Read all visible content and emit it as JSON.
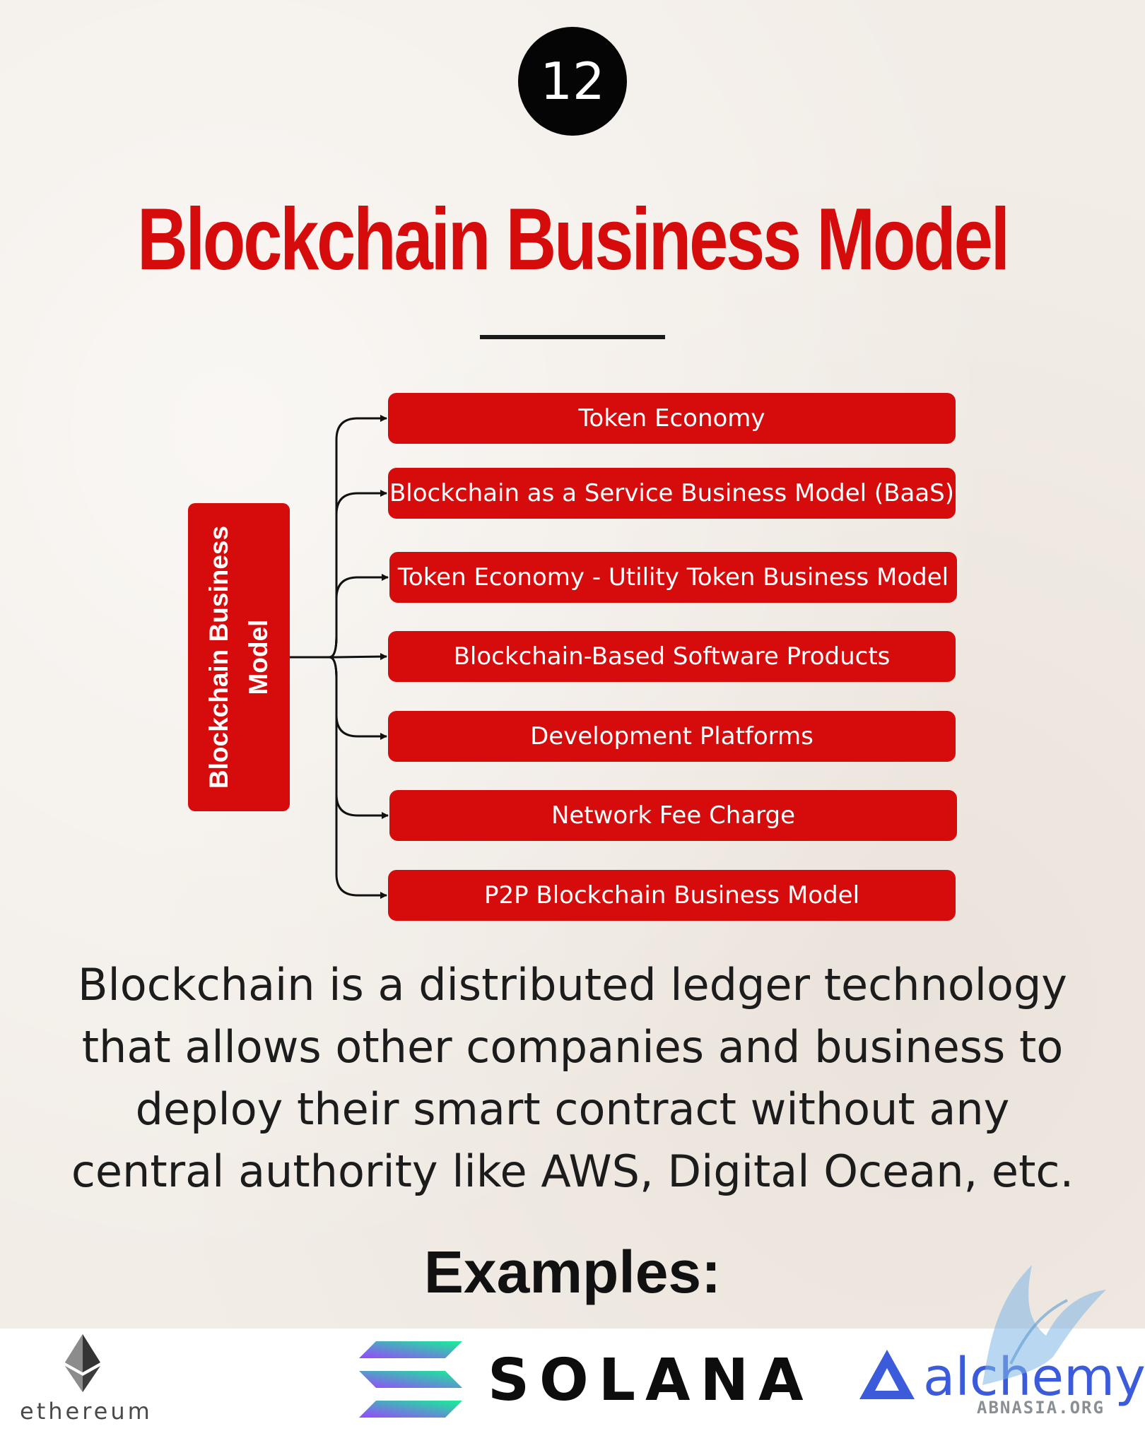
{
  "badge": {
    "number": "12"
  },
  "title": "Blockchain Business Model",
  "diagram": {
    "root_label": "Blockchain Business Model",
    "branches": [
      {
        "label": "Token Economy"
      },
      {
        "label": "Blockchain as a Service Business Model (BaaS)"
      },
      {
        "label": "Token Economy - Utility Token Business Model"
      },
      {
        "label": "Blockchain-Based Software Products"
      },
      {
        "label": "Development Platforms"
      },
      {
        "label": "Network Fee Charge"
      },
      {
        "label": "P2P Blockchain Business Model"
      }
    ]
  },
  "description": "Blockchain is a distributed ledger technology that allows other companies and business to deploy their smart contract without any central authority like AWS, Digital Ocean, etc.",
  "examples_heading": "Examples:",
  "logos": [
    {
      "name": "ethereum",
      "text": "ethereum",
      "icon": "ethereum-diamond-icon"
    },
    {
      "name": "solana",
      "text": "SOLANA",
      "icon": "solana-bars-icon"
    },
    {
      "name": "alchemy",
      "text": "alchemy",
      "icon": "alchemy-triangle-icon"
    }
  ],
  "watermark": {
    "text": "ABNASIA.ORG",
    "icon": "bird-icon"
  },
  "colors": {
    "accent": "#d60b0b",
    "badge": "#050505",
    "background": "#f2ede7",
    "alchemy_blue": "#3b5bdb"
  }
}
